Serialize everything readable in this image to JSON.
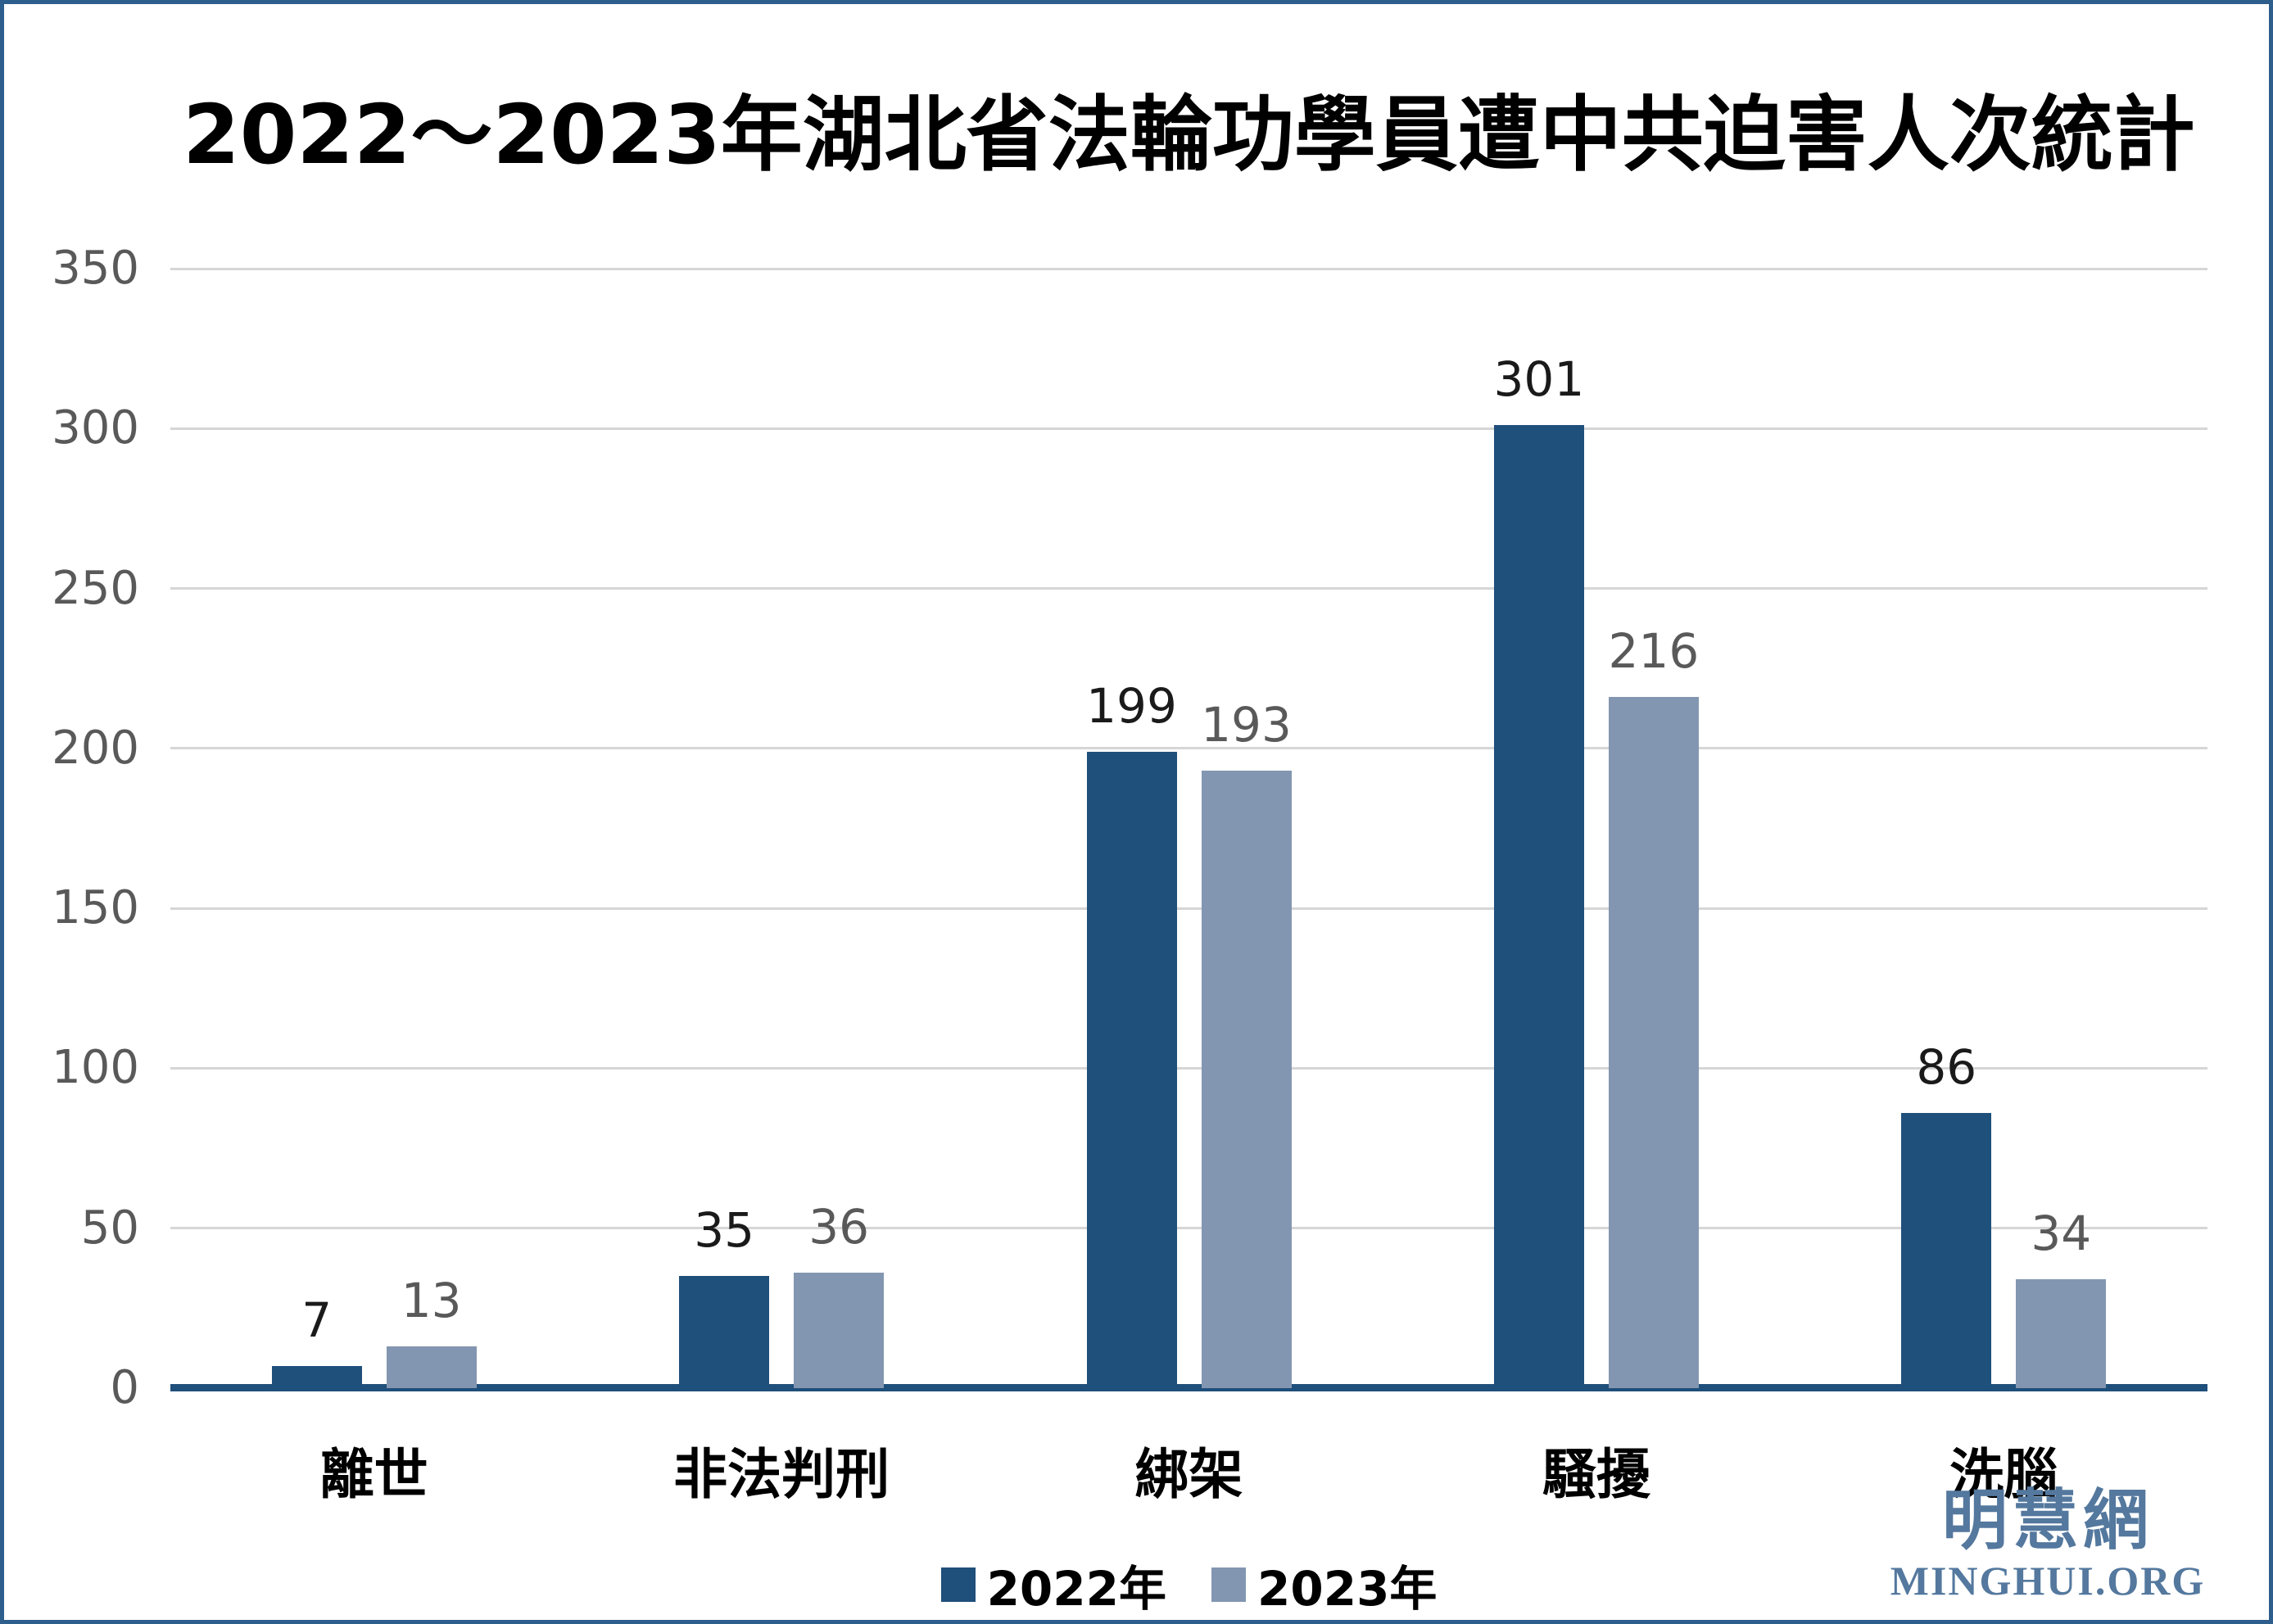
{
  "frame": {
    "background": "#FFFFFF",
    "border_color": "#2D5E8C"
  },
  "chart_data": {
    "type": "bar",
    "title": "2022～2023年湖北省法輪功學員遭中共迫害人次統計",
    "categories": [
      "離世",
      "非法判刑",
      "綁架",
      "騷擾",
      "洗腦"
    ],
    "series": [
      {
        "name": "2022年",
        "color": "#1F4F7B",
        "label_color": "#1A1A1A",
        "values": [
          7,
          35,
          199,
          301,
          86
        ]
      },
      {
        "name": "2023年",
        "color": "#8396B1",
        "label_color": "#595959",
        "values": [
          13,
          36,
          193,
          216,
          34
        ]
      }
    ],
    "xlabel": "",
    "ylabel": "",
    "ylim": [
      0,
      350
    ],
    "ytick_step": 50,
    "yticks": [
      0,
      50,
      100,
      150,
      200,
      250,
      300,
      350
    ],
    "grid": true,
    "legend_position": "bottom"
  },
  "axis": {
    "tick_color": "#595959",
    "gridline_color": "#D6D6D6",
    "baseline_color": "#1F4F7B"
  },
  "logo": {
    "chinese": "明慧網",
    "domain": "MINGHUI.ORG",
    "color": "#54789E"
  }
}
